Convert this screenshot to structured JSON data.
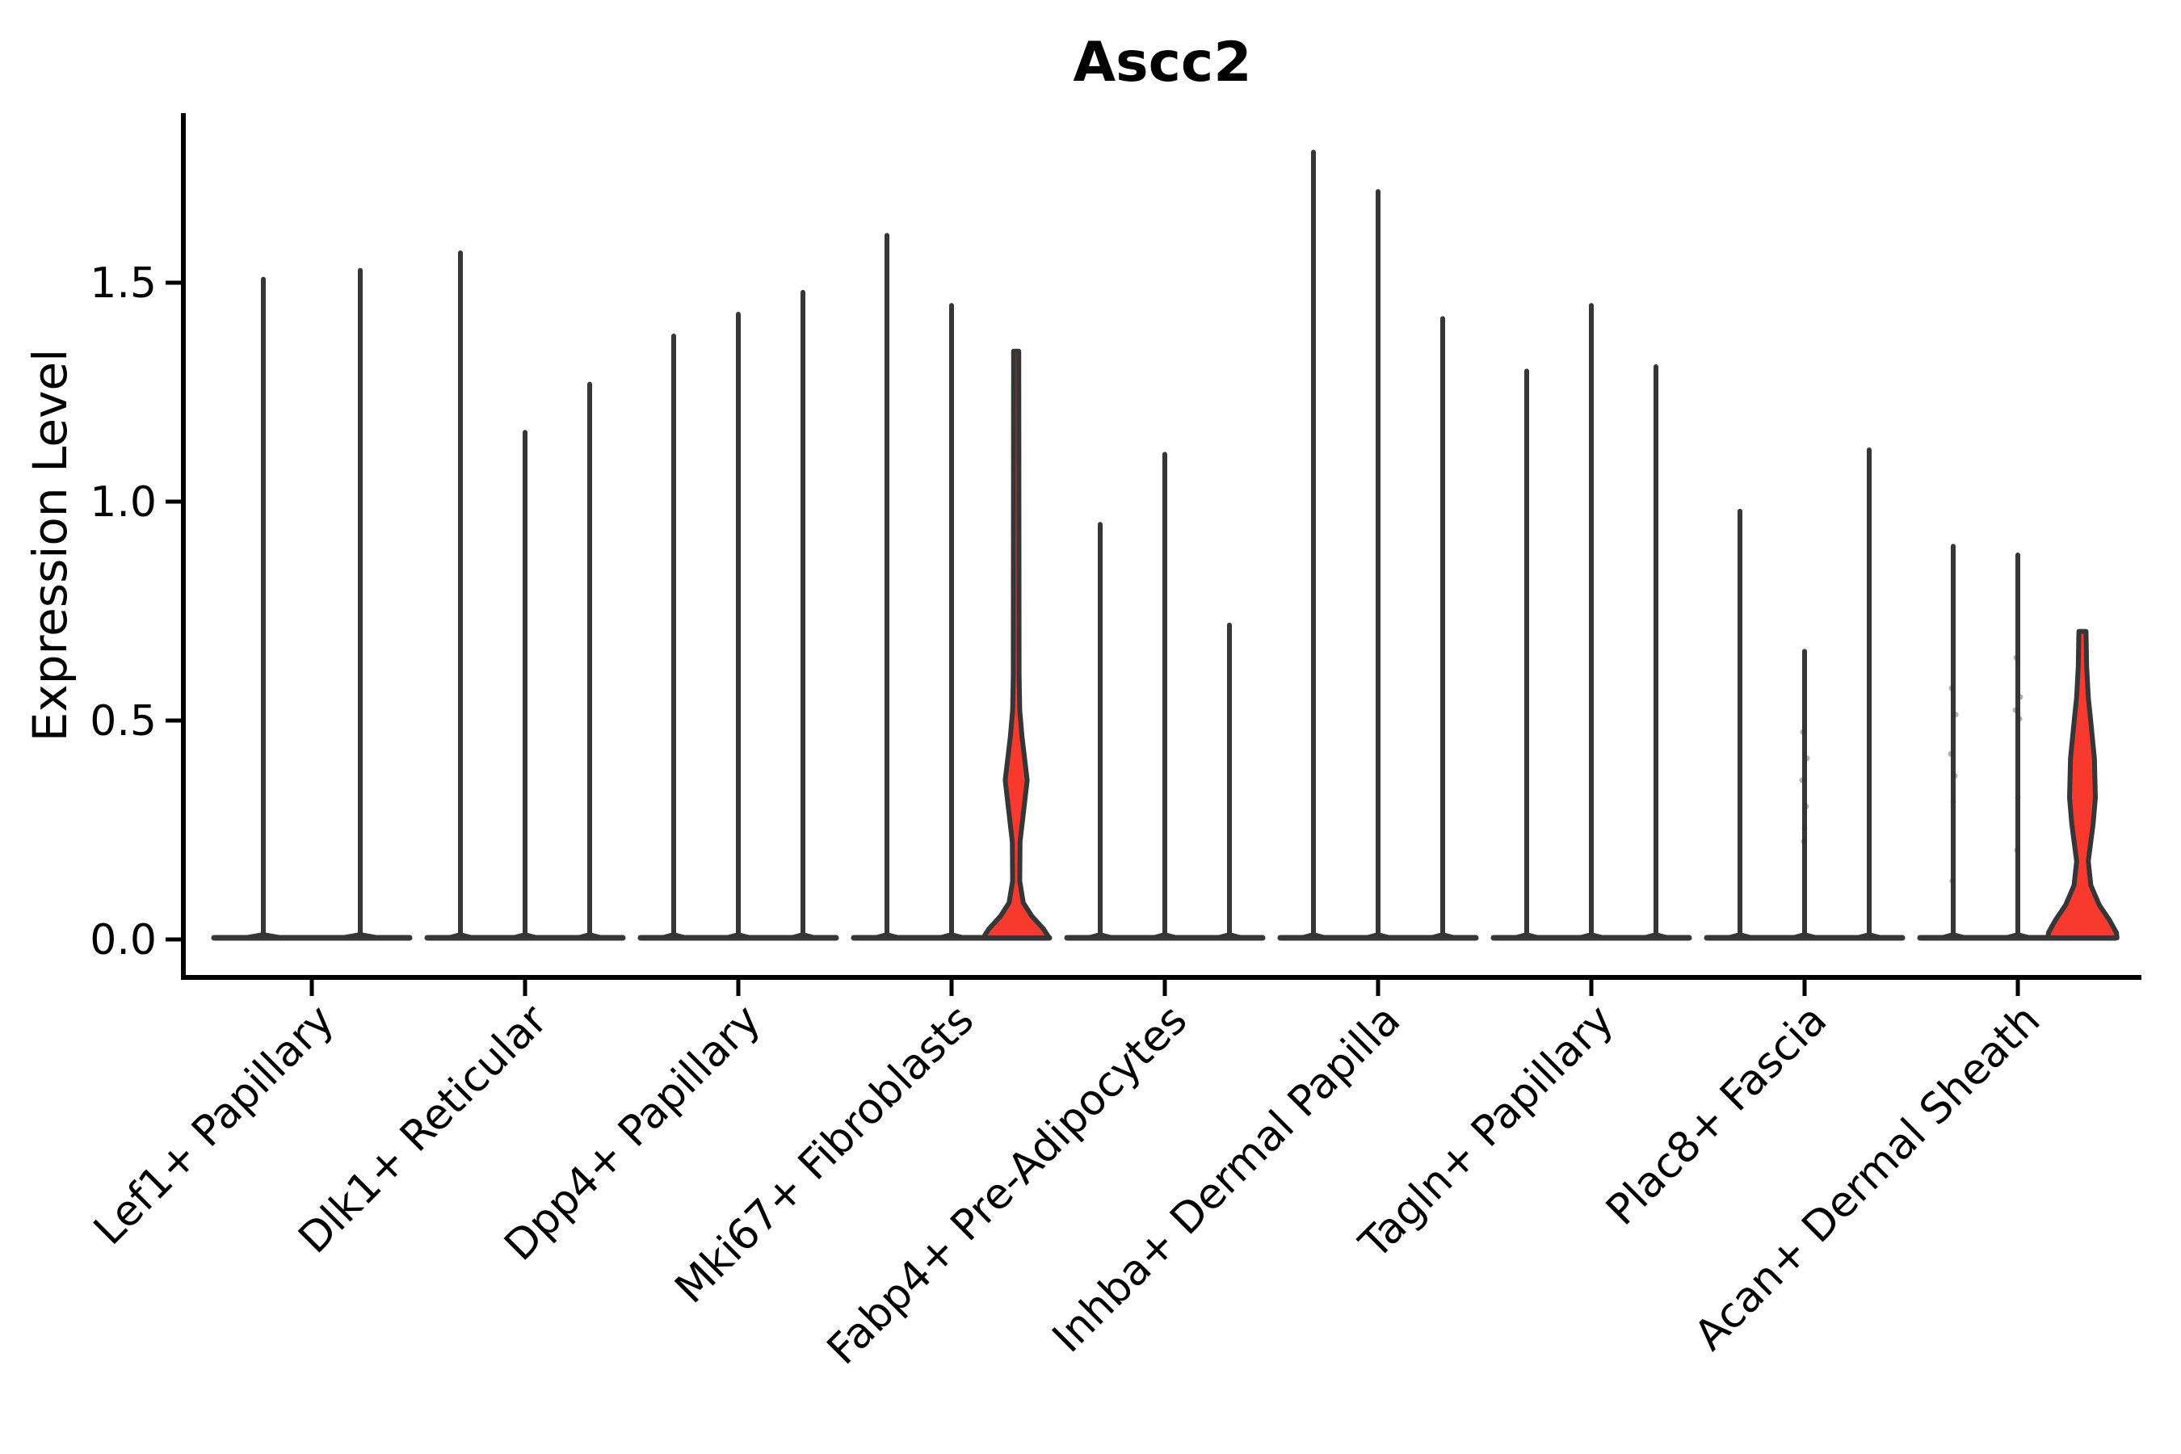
{
  "chart_data": {
    "type": "violin",
    "title": "Ascc2",
    "ylabel": "Expression Level",
    "xlabel": "",
    "grid": false,
    "legend": "none",
    "ytick_labels": [
      "0.0",
      "0.5",
      "1.0",
      "1.5"
    ],
    "ytick_values": [
      0.0,
      0.5,
      1.0,
      1.5
    ],
    "ylim": [
      -0.09,
      1.93
    ],
    "colors": {
      "violin_outline": "#363636",
      "highlight_fill": "#f8392e",
      "axis": "#000000",
      "text": "#000000"
    },
    "categories": [
      "Lef1+ Papillary",
      "Dlk1+ Reticular",
      "Dpp4+ Papillary",
      "Mki67+ Fibroblasts",
      "Fabp4+ Pre-Adipocytes",
      "Inhba+ Dermal Papilla",
      "Tagln+ Papillary",
      "Plac8+ Fascia",
      "Acan+ Dermal Sheath"
    ],
    "series": [
      {
        "category": "Lef1+ Papillary",
        "violins": [
          {
            "max": 1.51
          },
          {
            "max": 1.53
          }
        ]
      },
      {
        "category": "Dlk1+ Reticular",
        "violins": [
          {
            "max": 1.57
          },
          {
            "max": 1.16
          },
          {
            "max": 1.27
          }
        ]
      },
      {
        "category": "Dpp4+ Papillary",
        "violins": [
          {
            "max": 1.38
          },
          {
            "max": 1.43
          },
          {
            "max": 1.48
          }
        ]
      },
      {
        "category": "Mki67+ Fibroblasts",
        "violins": [
          {
            "max": 1.61
          },
          {
            "max": 1.45
          },
          {
            "max": 1.34,
            "highlighted": true,
            "profile": [
              [
                1.34,
                0.08
              ],
              [
                0.6,
                0.09
              ],
              [
                0.52,
                0.11
              ],
              [
                0.46,
                0.18
              ],
              [
                0.36,
                0.34
              ],
              [
                0.27,
                0.2
              ],
              [
                0.22,
                0.12
              ],
              [
                0.13,
                0.11
              ],
              [
                0.08,
                0.22
              ],
              [
                0.05,
                0.48
              ],
              [
                0.02,
                0.85
              ],
              [
                0.0,
                1.02
              ]
            ]
          }
        ]
      },
      {
        "category": "Fabp4+ Pre-Adipocytes",
        "violins": [
          {
            "max": 0.95
          },
          {
            "max": 1.11
          },
          {
            "max": 0.72
          }
        ]
      },
      {
        "category": "Inhba+ Dermal Papilla",
        "violins": [
          {
            "max": 1.8
          },
          {
            "max": 1.71
          },
          {
            "max": 1.42
          }
        ]
      },
      {
        "category": "Tagln+ Papillary",
        "violins": [
          {
            "max": 1.3
          },
          {
            "max": 1.45
          },
          {
            "max": 1.31
          }
        ]
      },
      {
        "category": "Plac8+ Fascia",
        "violins": [
          {
            "max": 0.98
          },
          {
            "max": 0.66,
            "points": [
              0.47,
              0.41,
              0.36,
              0.3,
              0.25,
              0.22
            ]
          },
          {
            "max": 1.12
          }
        ]
      },
      {
        "category": "Acan+ Dermal Sheath",
        "violins": [
          {
            "max": 0.9,
            "points": [
              0.57,
              0.51,
              0.42,
              0.37,
              0.31,
              0.13
            ]
          },
          {
            "max": 0.88,
            "points": [
              0.64,
              0.55,
              0.52,
              0.5,
              0.32,
              0.2
            ]
          },
          {
            "max": 0.7,
            "highlighted": true,
            "profile": [
              [
                0.7,
                0.11
              ],
              [
                0.62,
                0.13
              ],
              [
                0.55,
                0.18
              ],
              [
                0.5,
                0.25
              ],
              [
                0.41,
                0.37
              ],
              [
                0.32,
                0.4
              ],
              [
                0.26,
                0.33
              ],
              [
                0.175,
                0.18
              ],
              [
                0.12,
                0.26
              ],
              [
                0.075,
                0.52
              ],
              [
                0.04,
                0.84
              ],
              [
                0.012,
                1.05
              ],
              [
                0.0,
                1.07
              ]
            ]
          }
        ]
      }
    ]
  }
}
